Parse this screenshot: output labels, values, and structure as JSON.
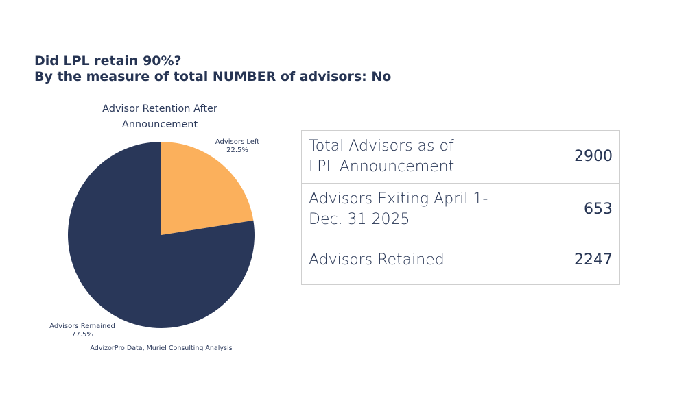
{
  "heading": {
    "line1": "Did LPL retain 90%?",
    "line2": "By the measure of total NUMBER of advisors: No"
  },
  "chart_data": {
    "type": "pie",
    "title_lines": [
      "Advisor Retention After",
      "Announcement"
    ],
    "slices": [
      {
        "name": "Advisors Left",
        "value": 22.5,
        "label": "22.5%",
        "color": "#fbb05c"
      },
      {
        "name": "Advisors Remained",
        "value": 77.5,
        "label": "77.5%",
        "color": "#293759"
      }
    ],
    "source": "AdvizorPro Data, Muriel Consulting Analysis"
  },
  "table": {
    "rows": [
      {
        "label_lines": [
          "Total Advisors as of",
          "LPL Announcement"
        ],
        "value": "2900"
      },
      {
        "label_lines": [
          "Advisors Exiting April 1-",
          "Dec. 31 2025"
        ],
        "value": "653"
      },
      {
        "label_lines": [
          "Advisors Retained"
        ],
        "value": "2247"
      }
    ]
  }
}
